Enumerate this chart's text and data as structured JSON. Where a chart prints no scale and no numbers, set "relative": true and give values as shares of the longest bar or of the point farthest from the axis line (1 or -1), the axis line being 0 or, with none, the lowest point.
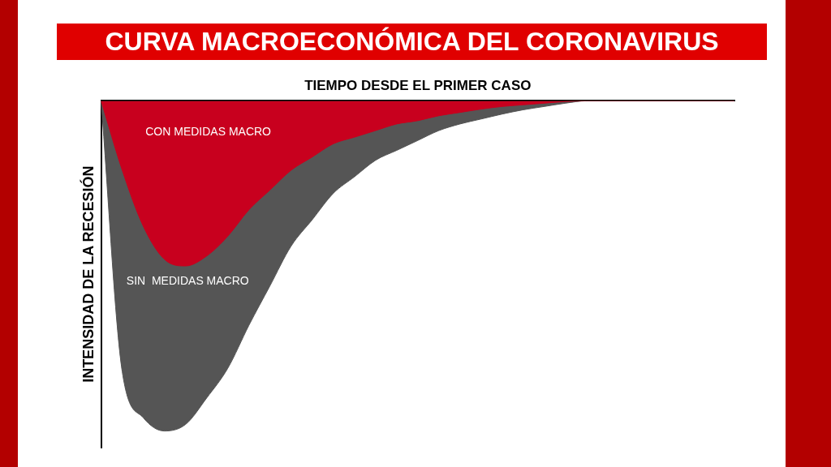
{
  "chart_data": {
    "type": "area",
    "title": "CURVA MACROECONÓMICA DEL CORONAVIRUS",
    "xlabel": "TIEMPO DESDE EL PRIMER CASO",
    "ylabel": "INTENSIDAD DE LA RECESIÓN",
    "relative": true,
    "categories": [
      null,
      null,
      null,
      null,
      null,
      null,
      null,
      null,
      null,
      null,
      null,
      null,
      null,
      null,
      null,
      null,
      null,
      null,
      null,
      null,
      null,
      null,
      null,
      null,
      null,
      null,
      null,
      null,
      null,
      null,
      null
    ],
    "series": [
      {
        "name": "SIN  MEDIDAS MACRO",
        "color": "#555555",
        "values": [
          0,
          -0.82,
          -0.96,
          -1,
          -0.98,
          -0.9,
          -0.81,
          -0.68,
          -0.56,
          -0.44,
          -0.36,
          -0.28,
          -0.23,
          -0.18,
          -0.15,
          -0.12,
          -0.09,
          -0.07,
          -0.055,
          -0.04,
          -0.027,
          -0.017,
          -0.007,
          0,
          0,
          0,
          0,
          0,
          0,
          0,
          0
        ]
      },
      {
        "name": "CON MEDIDAS MACRO",
        "color": "#c8001e",
        "values": [
          0,
          -0.21,
          -0.38,
          -0.48,
          -0.5,
          -0.47,
          -0.41,
          -0.33,
          -0.27,
          -0.21,
          -0.17,
          -0.13,
          -0.11,
          -0.09,
          -0.07,
          -0.06,
          -0.045,
          -0.035,
          -0.025,
          -0.017,
          -0.012,
          -0.007,
          -0.002,
          0,
          0,
          0,
          0,
          0,
          0,
          0,
          0
        ]
      }
    ]
  }
}
